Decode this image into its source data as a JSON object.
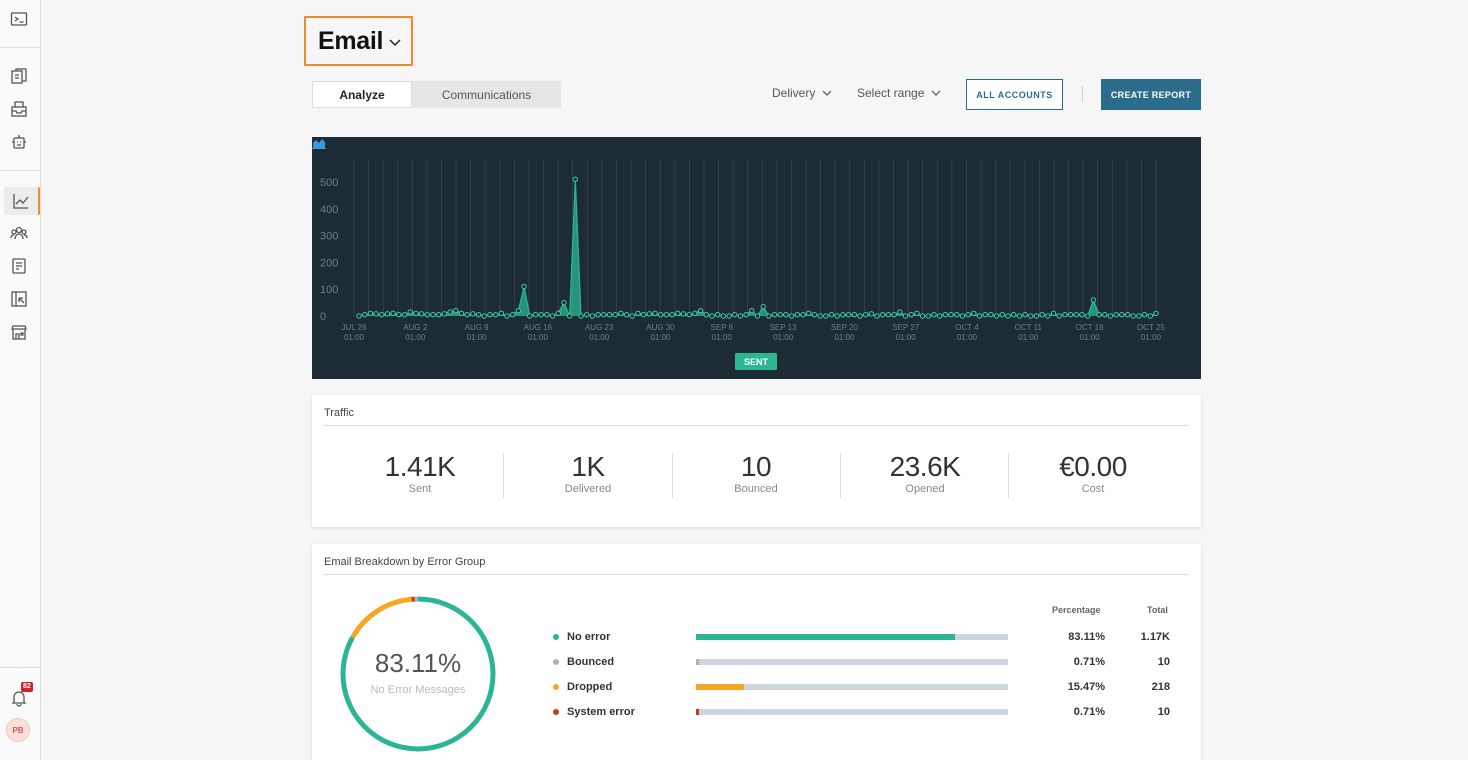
{
  "sidebar": {
    "items": [
      {
        "icon": "terminal-icon"
      },
      {
        "icon": "documents-icon"
      },
      {
        "icon": "inbox-icon"
      },
      {
        "icon": "robot-icon"
      },
      {
        "icon": "analytics-icon",
        "active": true
      },
      {
        "icon": "contacts-icon"
      },
      {
        "icon": "notebook-icon"
      },
      {
        "icon": "report-icon"
      },
      {
        "icon": "store-icon"
      }
    ],
    "notifications": {
      "icon": "bell-icon",
      "count": "82"
    },
    "user": {
      "initials": "PB"
    }
  },
  "header": {
    "title": "Email"
  },
  "tabs": [
    {
      "label": "Analyze",
      "active": true
    },
    {
      "label": "Communications",
      "active": false
    }
  ],
  "toolbar": {
    "delivery_label": "Delivery",
    "range_label": "Select range",
    "all_accounts_label": "ALL ACCOUNTS",
    "create_report_label": "CREATE REPORT"
  },
  "chart_data": {
    "type": "area",
    "series": [
      {
        "name": "SENT",
        "color": "#2bb890",
        "values": [
          0,
          5,
          10,
          8,
          5,
          8,
          10,
          5,
          5,
          15,
          10,
          8,
          5,
          5,
          5,
          8,
          15,
          20,
          10,
          5,
          8,
          5,
          0,
          5,
          5,
          10,
          0,
          5,
          20,
          110,
          0,
          5,
          5,
          5,
          0,
          10,
          50,
          0,
          510,
          0,
          5,
          0,
          5,
          5,
          5,
          5,
          10,
          5,
          0,
          10,
          5,
          8,
          10,
          5,
          5,
          5,
          10,
          8,
          5,
          10,
          20,
          5,
          0,
          5,
          0,
          0,
          5,
          0,
          5,
          20,
          0,
          35,
          0,
          5,
          5,
          5,
          0,
          5,
          5,
          10,
          5,
          0,
          0,
          5,
          0,
          5,
          5,
          5,
          0,
          5,
          8,
          0,
          5,
          5,
          5,
          15,
          0,
          5,
          10,
          0,
          0,
          5,
          0,
          5,
          5,
          5,
          0,
          5,
          10,
          0,
          5,
          5,
          0,
          5,
          0,
          5,
          0,
          5,
          0,
          0,
          5,
          0,
          10,
          0,
          5,
          5,
          5,
          5,
          0,
          60,
          5,
          5,
          0,
          5,
          5,
          5,
          0,
          0,
          5,
          0,
          10
        ]
      }
    ],
    "ylim": [
      0,
      500
    ],
    "yticks": [
      "500",
      "400",
      "300",
      "200",
      "100",
      "0"
    ],
    "xticks": [
      {
        "date": "JUL 26",
        "time": "01:00"
      },
      {
        "date": "AUG 2",
        "time": "01:00"
      },
      {
        "date": "AUG 9",
        "time": "01:00"
      },
      {
        "date": "AUG 16",
        "time": "01:00"
      },
      {
        "date": "AUG 23",
        "time": "01:00"
      },
      {
        "date": "AUG 30",
        "time": "01:00"
      },
      {
        "date": "SEP 6",
        "time": "01:00"
      },
      {
        "date": "SEP 13",
        "time": "01:00"
      },
      {
        "date": "SEP 20",
        "time": "01:00"
      },
      {
        "date": "SEP 27",
        "time": "01:00"
      },
      {
        "date": "OCT 4",
        "time": "01:00"
      },
      {
        "date": "OCT 11",
        "time": "01:00"
      },
      {
        "date": "OCT 18",
        "time": "01:00"
      },
      {
        "date": "OCT 25",
        "time": "01:00"
      }
    ],
    "legend": "SENT",
    "grid": true
  },
  "traffic": {
    "title": "Traffic",
    "stats": [
      {
        "value": "1.41K",
        "label": "Sent"
      },
      {
        "value": "1K",
        "label": "Delivered"
      },
      {
        "value": "10",
        "label": "Bounced"
      },
      {
        "value": "23.6K",
        "label": "Opened"
      },
      {
        "value": "€0.00",
        "label": "Cost"
      }
    ]
  },
  "breakdown": {
    "title": "Email Breakdown by Error Group",
    "donut_value": "83.11%",
    "donut_label": "No Error Messages",
    "col_percentage": "Percentage",
    "col_total": "Total",
    "rows": [
      {
        "label": "No error",
        "color": "#2bb595",
        "pct": "83.11%",
        "total": "1.17K",
        "fraction": 0.8311
      },
      {
        "label": "Bounced",
        "color": "#a9b3ba",
        "pct": "0.71%",
        "total": "10",
        "fraction": 0.0071
      },
      {
        "label": "Dropped",
        "color": "#f5a623",
        "pct": "15.47%",
        "total": "218",
        "fraction": 0.1547
      },
      {
        "label": "System error",
        "color": "#cc3a11",
        "pct": "0.71%",
        "total": "10",
        "fraction": 0.0071
      }
    ]
  }
}
